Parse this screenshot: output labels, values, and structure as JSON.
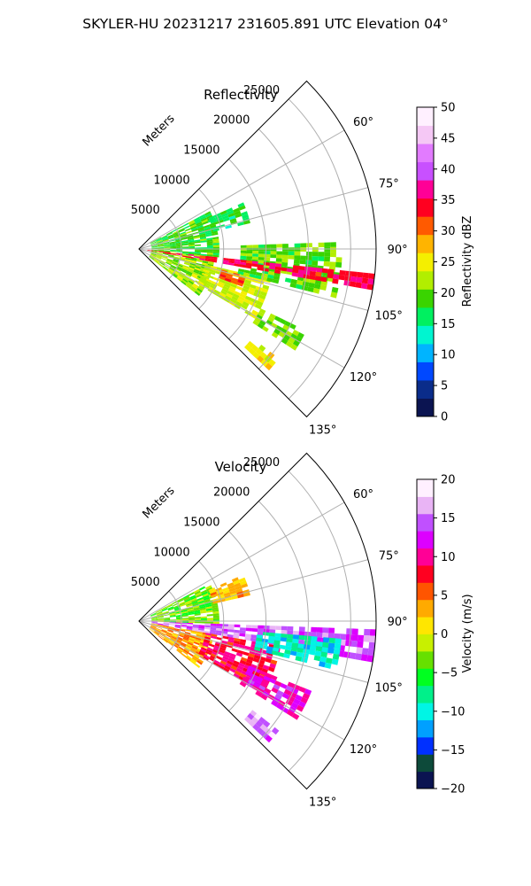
{
  "figure": {
    "title": "SKYLER-HU  20231217  231605.891 UTC Elevation 04°"
  },
  "chart_data": [
    {
      "type": "polar-sector",
      "title": "Reflectivity",
      "radial_label": "Meters",
      "radial_ticks": [
        5000,
        10000,
        15000,
        20000,
        25000
      ],
      "radial_tick_labels": [
        "5000",
        "10000",
        "15000",
        "20000",
        "25000"
      ],
      "r_max": 28000,
      "theta_range_deg": [
        45,
        135
      ],
      "angle_ticks_deg": [
        60,
        75,
        90,
        105,
        120,
        135
      ],
      "angle_tick_labels": [
        "60°",
        "75°",
        "90°",
        "105°",
        "120°",
        "135°"
      ],
      "grid": true,
      "colorbar": {
        "label": "Reflectivity dBZ",
        "range": [
          0,
          50
        ],
        "ticks": [
          0,
          5,
          10,
          15,
          20,
          25,
          30,
          35,
          40,
          45,
          50
        ],
        "tick_labels": [
          "0",
          "5",
          "10",
          "15",
          "20",
          "25",
          "30",
          "35",
          "40",
          "45",
          "50"
        ],
        "colors": [
          "#0b1451",
          "#0a2c8a",
          "#0048ff",
          "#00b4ff",
          "#00f5d0",
          "#00f060",
          "#3ad400",
          "#b2ee00",
          "#f4ef00",
          "#ffb400",
          "#ff5a00",
          "#ff0020",
          "#ff0096",
          "#c850ff",
          "#e27bff",
          "#f5c8f5",
          "#fff0ff"
        ]
      },
      "echo_regions": [
        {
          "az": [
            62,
            96
          ],
          "r": [
            1500,
            9500
          ],
          "value": 18
        },
        {
          "az": [
            96,
            128
          ],
          "r": [
            1500,
            9000
          ],
          "value": 21
        },
        {
          "az": [
            103,
            121
          ],
          "r": [
            8000,
            16000
          ],
          "value": 23
        },
        {
          "az": [
            104,
            110
          ],
          "r": [
            10000,
            13000
          ],
          "value": 31
        },
        {
          "az": [
            88,
            104
          ],
          "r": [
            12000,
            24000
          ],
          "value": 19
        },
        {
          "az": [
            116,
            123
          ],
          "r": [
            16000,
            22000
          ],
          "value": 20
        },
        {
          "az": [
            128,
            133
          ],
          "r": [
            17000,
            21000
          ],
          "value": 24
        },
        {
          "az": [
            66,
            77
          ],
          "r": [
            9000,
            13500
          ],
          "value": 16
        },
        {
          "az": [
            96,
            100
          ],
          "r": [
            1000,
            28000
          ],
          "value": 34
        }
      ]
    },
    {
      "type": "polar-sector",
      "title": "Velocity",
      "radial_label": "Meters",
      "radial_ticks": [
        5000,
        10000,
        15000,
        20000,
        25000
      ],
      "radial_tick_labels": [
        "5000",
        "10000",
        "15000",
        "20000",
        "25000"
      ],
      "r_max": 28000,
      "theta_range_deg": [
        45,
        135
      ],
      "angle_ticks_deg": [
        60,
        75,
        90,
        105,
        120,
        135
      ],
      "angle_tick_labels": [
        "60°",
        "75°",
        "90°",
        "105°",
        "120°",
        "135°"
      ],
      "grid": true,
      "colorbar": {
        "label": "Velocity (m/s)",
        "range": [
          -20,
          20
        ],
        "ticks": [
          -20,
          -15,
          -10,
          -5,
          0,
          5,
          10,
          15,
          20
        ],
        "tick_labels": [
          "−20",
          "−15",
          "−10",
          "−5",
          "0",
          "5",
          "10",
          "15",
          "20"
        ],
        "colors": [
          "#0b1451",
          "#0d4a3a",
          "#0030ff",
          "#00a0ff",
          "#00f5e5",
          "#00f08a",
          "#00ff20",
          "#66e000",
          "#c8f000",
          "#ffe600",
          "#ffaa00",
          "#ff5500",
          "#ff0020",
          "#ff0096",
          "#dd00ff",
          "#c050ff",
          "#e9b4f5",
          "#fff0ff"
        ]
      },
      "echo_regions": [
        {
          "az": [
            62,
            92
          ],
          "r": [
            1500,
            9500
          ],
          "value": -4
        },
        {
          "az": [
            66,
            77
          ],
          "r": [
            9000,
            13500
          ],
          "value": 2
        },
        {
          "az": [
            92,
            100
          ],
          "r": [
            1500,
            28000
          ],
          "value": 14
        },
        {
          "az": [
            100,
            128
          ],
          "r": [
            1500,
            9000
          ],
          "value": 3
        },
        {
          "az": [
            100,
            120
          ],
          "r": [
            8000,
            17000
          ],
          "value": 8
        },
        {
          "az": [
            95,
            104
          ],
          "r": [
            14000,
            24000
          ],
          "value": -10
        },
        {
          "az": [
            112,
            122
          ],
          "r": [
            14000,
            22000
          ],
          "value": 11
        },
        {
          "az": [
            128,
            133
          ],
          "r": [
            17000,
            21000
          ],
          "value": 15
        }
      ]
    }
  ]
}
